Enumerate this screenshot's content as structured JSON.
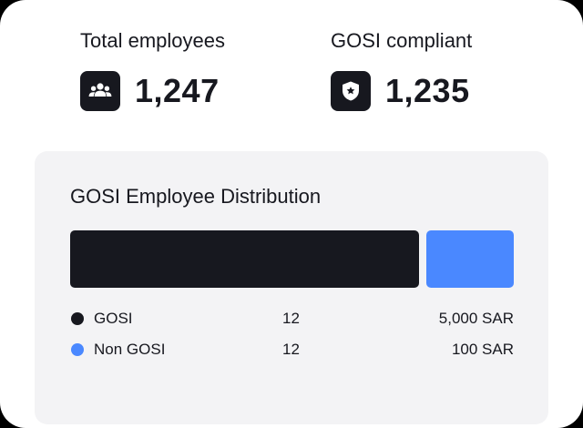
{
  "stats": {
    "total": {
      "label": "Total employees",
      "value": "1,247",
      "icon": "people-group-icon"
    },
    "gosi": {
      "label": "GOSI compliant",
      "value": "1,235",
      "icon": "shield-star-icon"
    }
  },
  "distribution": {
    "title": "GOSI Employee Distribution",
    "segments": [
      {
        "name": "GOSI",
        "count": "12",
        "amount": "5,000 SAR",
        "fraction": 0.8,
        "color": "#17181f"
      },
      {
        "name": "Non GOSI",
        "count": "12",
        "amount": "100 SAR",
        "fraction": 0.2,
        "color": "#4a88ff"
      }
    ]
  }
}
